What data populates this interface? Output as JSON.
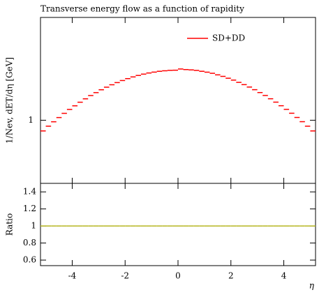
{
  "chart_data": {
    "type": "histogram",
    "title": "Transverse energy flow as a function of rapidity",
    "ylabel": "1/Nev, dET/dη [GeV]",
    "xlabel": "η",
    "ratio_label": "Ratio",
    "bins": [
      -5.2,
      -5.0,
      -4.8,
      -4.6,
      -4.4,
      -4.2,
      -4.0,
      -3.8,
      -3.6,
      -3.4,
      -3.2,
      -3.0,
      -2.8,
      -2.6,
      -2.4,
      -2.2,
      -2.0,
      -1.8,
      -1.6,
      -1.4,
      -1.2,
      -1.0,
      -0.8,
      -0.6,
      -0.4,
      -0.2,
      0.0,
      0.2,
      0.4,
      0.6,
      0.8,
      1.0,
      1.2,
      1.4,
      1.6,
      1.8,
      2.0,
      2.2,
      2.4,
      2.6,
      2.8,
      3.0,
      3.2,
      3.4,
      3.6,
      3.8,
      4.0,
      4.2,
      4.4,
      4.6,
      4.8,
      5.0,
      5.2
    ],
    "series": [
      {
        "name": "SD+DD",
        "color": "#ff0000",
        "values": [
          0.895,
          0.94,
          0.984,
          1.028,
          1.074,
          1.118,
          1.161,
          1.205,
          1.248,
          1.291,
          1.331,
          1.371,
          1.408,
          1.444,
          1.477,
          1.509,
          1.539,
          1.566,
          1.59,
          1.612,
          1.631,
          1.646,
          1.66,
          1.669,
          1.676,
          1.679,
          1.7,
          1.69,
          1.684,
          1.675,
          1.66,
          1.645,
          1.626,
          1.6,
          1.575,
          1.545,
          1.515,
          1.48,
          1.446,
          1.41,
          1.372,
          1.332,
          1.292,
          1.249,
          1.206,
          1.162,
          1.119,
          1.075,
          1.029,
          0.985,
          0.94,
          0.895
        ]
      }
    ],
    "ratio": {
      "color": "#b5b520",
      "values": [
        1,
        1,
        1,
        1,
        1,
        1,
        1,
        1,
        1,
        1,
        1,
        1,
        1,
        1,
        1,
        1,
        1,
        1,
        1,
        1,
        1,
        1,
        1,
        1,
        1,
        1,
        1,
        1,
        1,
        1,
        1,
        1,
        1,
        1,
        1,
        1,
        1,
        1,
        1,
        1,
        1,
        1,
        1,
        1,
        1,
        1,
        1,
        1,
        1,
        1,
        1,
        1
      ]
    },
    "xlim": [
      -5.2,
      5.2
    ],
    "xticks": [
      -4,
      -2,
      0,
      2,
      4
    ],
    "ylim": [
      0.52,
      2.9
    ],
    "yticks": [
      1
    ],
    "log_y": true,
    "ratio_ylim": [
      0.535,
      1.5
    ],
    "ratio_yticks": [
      0.6,
      0.8,
      1,
      1.2,
      1.4
    ],
    "legend": "top-right"
  }
}
